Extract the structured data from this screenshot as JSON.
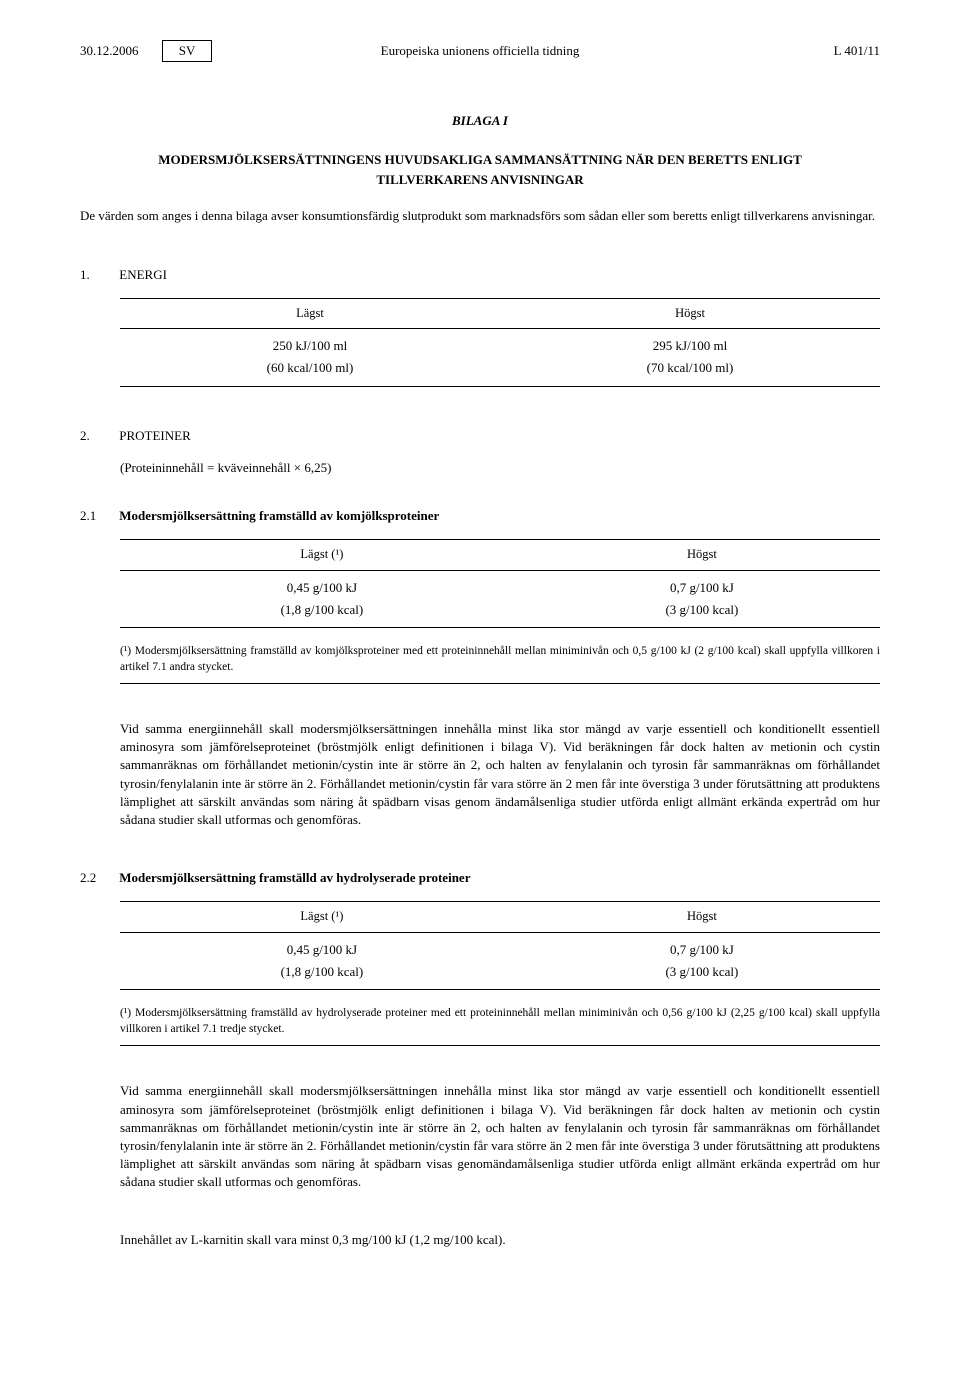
{
  "header": {
    "date": "30.12.2006",
    "lang": "SV",
    "center": "Europeiska unionens officiella tidning",
    "right": "L 401/11"
  },
  "annex": "BILAGA I",
  "title_line1": "MODERSMJÖLKSERSÄTTNINGENS HUVUDSAKLIGA SAMMANSÄTTNING NÄR DEN BERETTS ENLIGT",
  "title_line2": "TILLVERKARENS ANVISNINGAR",
  "intro": "De värden som anges i denna bilaga avser konsumtionsfärdig slutprodukt som marknadsförs som sådan eller som beretts enligt tillverkarens anvisningar.",
  "s1": {
    "num": "1.",
    "label": "ENERGI",
    "col1": "Lägst",
    "col2": "Högst",
    "r1c1": "250 kJ/100 ml",
    "r1c2": "295 kJ/100 ml",
    "r2c1": "(60 kcal/100 ml)",
    "r2c2": "(70 kcal/100 ml)"
  },
  "s2": {
    "num": "2.",
    "label": "PROTEINER",
    "note": "(Proteininnehåll = kväveinnehåll × 6,25)"
  },
  "s21": {
    "num": "2.1",
    "label": "Modersmjölksersättning framställd av komjölksproteiner",
    "col1": "Lägst (¹)",
    "col2": "Högst",
    "r1c1": "0,45 g/100 kJ",
    "r1c2": "0,7 g/100 kJ",
    "r2c1": "(1,8 g/100 kcal)",
    "r2c2": "(3 g/100 kcal)",
    "footnote": "(¹) Modersmjölksersättning framställd av komjölksproteiner med ett proteininnehåll mellan miniminivån och 0,5 g/100 kJ (2 g/100 kcal) skall uppfylla villkoren i artikel 7.1 andra stycket.",
    "para": "Vid samma energiinnehåll skall modersmjölksersättningen innehålla minst lika stor mängd av varje essentiell och konditionellt essentiell aminosyra som jämförelseproteinet (bröstmjölk enligt definitionen i bilaga V). Vid beräkningen får dock halten av metionin och cystin sammanräknas om förhållandet metionin/cystin inte är större än 2, och halten av fenylalanin och tyrosin får sammanräknas om förhållandet tyrosin/fenylalanin inte är större än 2. Förhållandet metionin/cystin får vara större än 2 men får inte överstiga 3 under förutsättning att produktens lämplighet att särskilt användas som näring åt spädbarn visas genom ändamålsenliga studier utförda enligt allmänt erkända expertråd om hur sådana studier skall utformas och genomföras."
  },
  "s22": {
    "num": "2.2",
    "label": "Modersmjölksersättning framställd av hydrolyserade proteiner",
    "col1": "Lägst (¹)",
    "col2": "Högst",
    "r1c1": "0,45 g/100 kJ",
    "r1c2": "0,7 g/100 kJ",
    "r2c1": "(1,8 g/100 kcal)",
    "r2c2": "(3 g/100 kcal)",
    "footnote": "(¹) Modersmjölksersättning framställd av hydrolyserade proteiner med ett proteininnehåll mellan miniminivån och 0,56 g/100 kJ (2,25 g/100 kcal) skall uppfylla villkoren i artikel 7.1 tredje stycket.",
    "para": "Vid samma energiinnehåll skall modersmjölksersättningen innehålla minst lika stor mängd av varje essentiell och konditionellt essentiell aminosyra som jämförelseproteinet (bröstmjölk enligt definitionen i bilaga V). Vid beräkningen får dock halten av metionin och cystin sammanräknas om förhållandet metionin/cystin inte är större än 2, och halten av fenylalanin och tyrosin får sammanräknas om förhållandet tyrosin/fenylalanin inte är större än 2. Förhållandet metionin/cystin får vara större än 2 men får inte överstiga 3 under förutsättning att produktens lämplighet att särskilt användas som näring åt spädbarn visas genomändamålsenliga studier utförda enligt allmänt erkända expertråd om hur sådana studier skall utformas och genomföras."
  },
  "final": "Innehållet av L-karnitin skall vara minst 0,3 mg/100 kJ (1,2 mg/100 kcal)."
}
